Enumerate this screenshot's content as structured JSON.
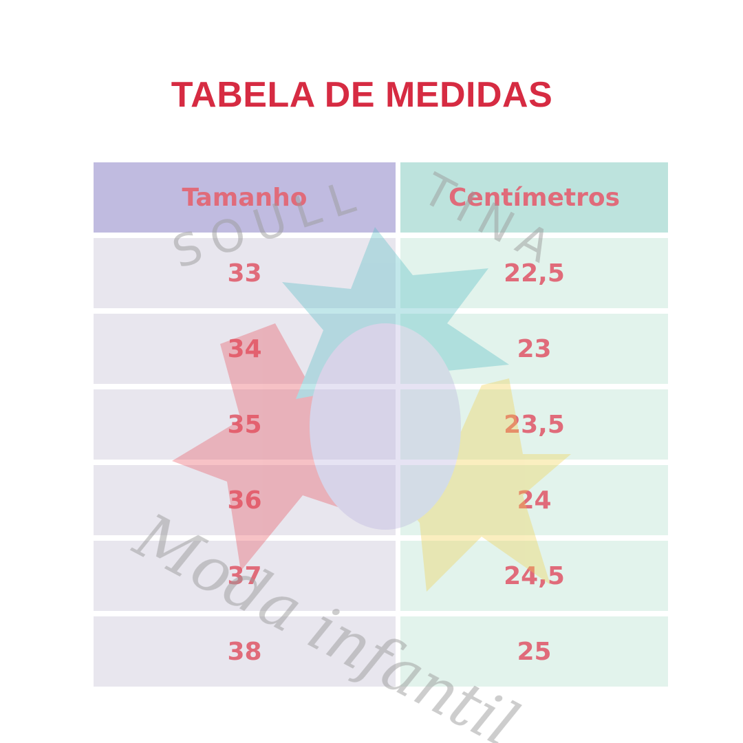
{
  "header": {
    "title": "TABELA DE MEDIDAS"
  },
  "table": {
    "columns": [
      "Tamanho",
      "Centímetros"
    ],
    "rows": [
      [
        "33",
        "22,5"
      ],
      [
        "34",
        "23"
      ],
      [
        "35",
        "23,5"
      ],
      [
        "36",
        "24"
      ],
      [
        "37",
        "24,5"
      ],
      [
        "38",
        "25"
      ]
    ]
  },
  "watermark": {
    "brand_left": "SOULL",
    "brand_right": "TINA",
    "tagline": "Moda infantil"
  }
}
